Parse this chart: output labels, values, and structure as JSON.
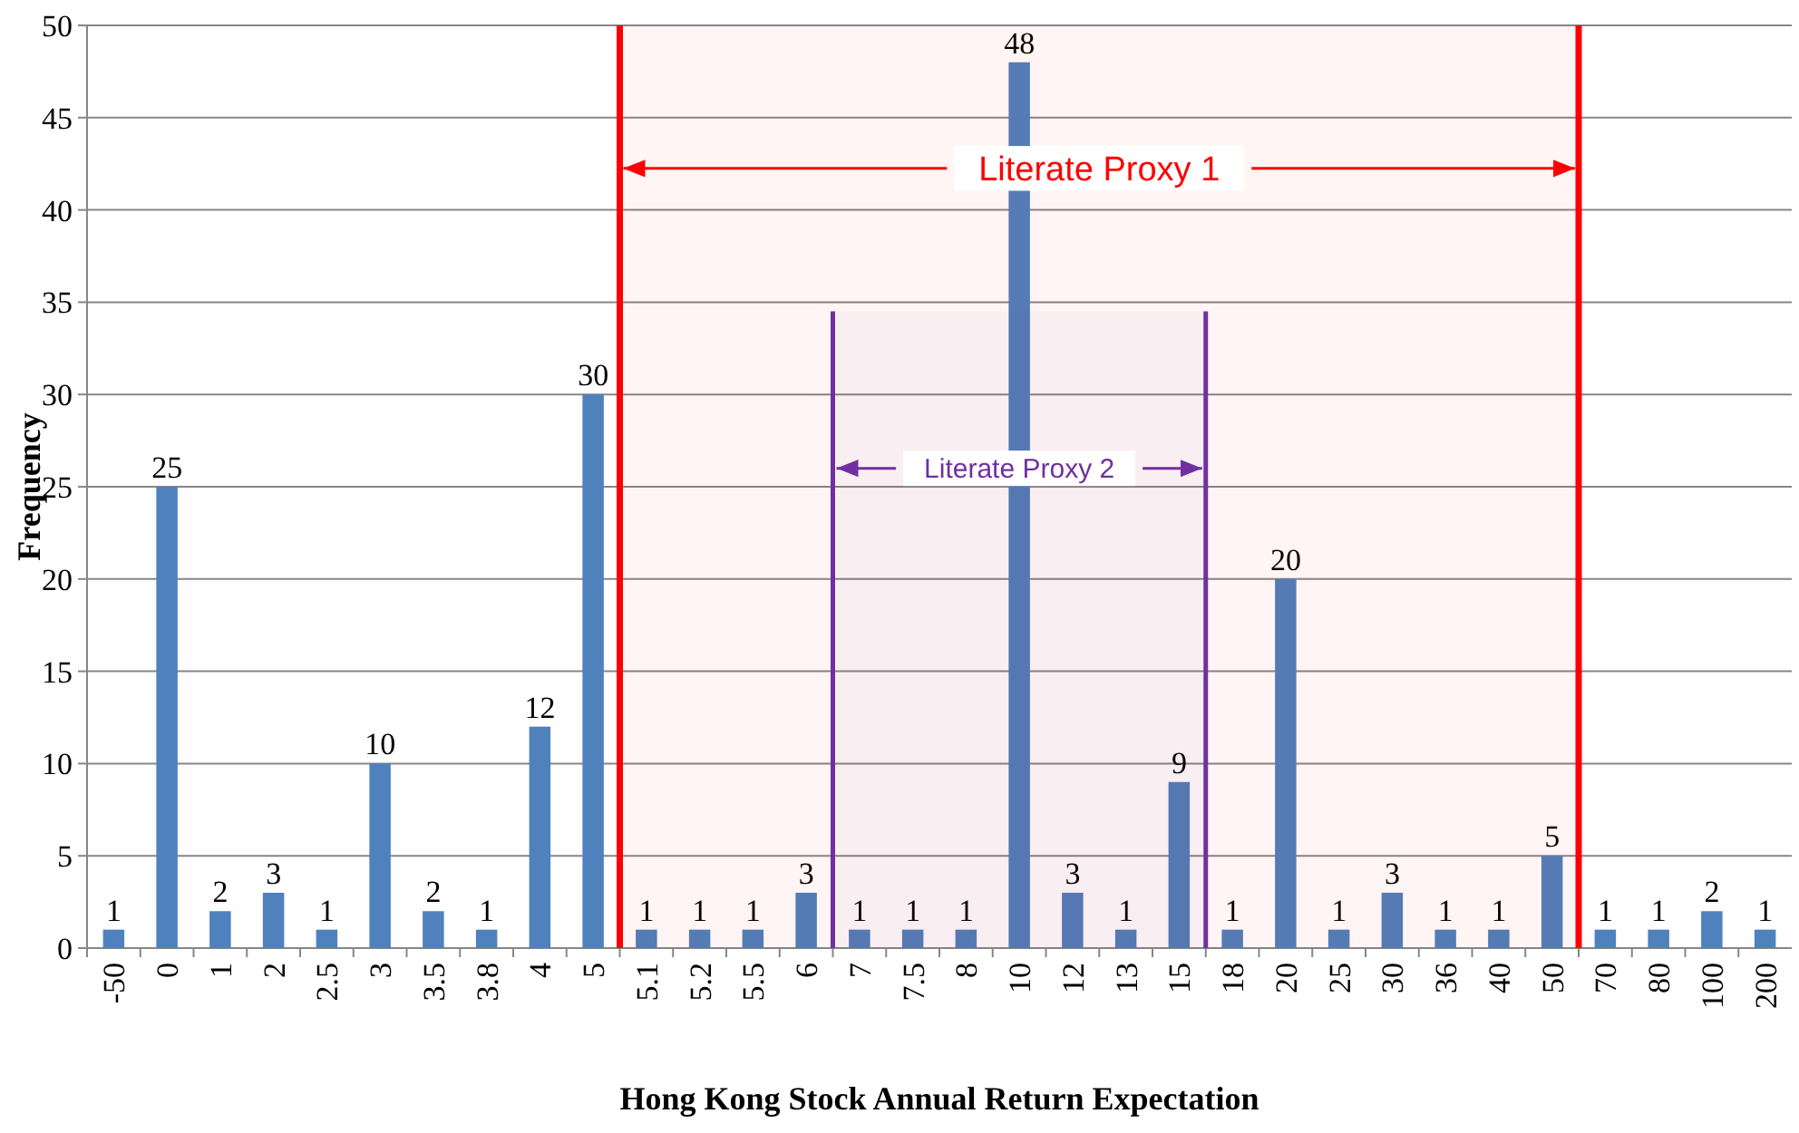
{
  "chart_data": {
    "type": "bar",
    "xlabel": "Hong Kong Stock Annual Return Expectation",
    "ylabel": "Frequency",
    "categories": [
      "-50",
      "0",
      "1",
      "2",
      "2.5",
      "3",
      "3.5",
      "3.8",
      "4",
      "5",
      "5.1",
      "5.2",
      "5.5",
      "6",
      "7",
      "7.5",
      "8",
      "10",
      "12",
      "13",
      "15",
      "18",
      "20",
      "25",
      "30",
      "36",
      "40",
      "50",
      "70",
      "80",
      "100",
      "200"
    ],
    "values": [
      1,
      25,
      2,
      3,
      1,
      10,
      2,
      1,
      12,
      30,
      1,
      1,
      1,
      3,
      1,
      1,
      1,
      48,
      3,
      1,
      9,
      1,
      20,
      1,
      3,
      1,
      1,
      5,
      1,
      1,
      2,
      1
    ],
    "color": "#4f81bd",
    "data_labels": true,
    "ylim": [
      0,
      50
    ],
    "yticks": [
      0,
      5,
      10,
      15,
      20,
      25,
      30,
      35,
      40,
      45,
      50
    ],
    "grid": "y",
    "bands": [
      {
        "axis": "x",
        "from": "5.1",
        "to": "50",
        "label": "Literate Proxy 1",
        "color": "#ff0000"
      },
      {
        "axis": "x",
        "from": "7",
        "to": "15",
        "label": "Literate Proxy 2",
        "color": "#7030a0"
      }
    ]
  }
}
